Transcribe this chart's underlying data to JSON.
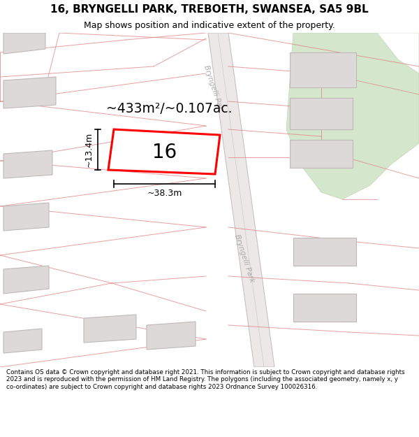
{
  "title_line1": "16, BRYNGELLI PARK, TREBOETH, SWANSEA, SA5 9BL",
  "title_line2": "Map shows position and indicative extent of the property.",
  "footer_text": "Contains OS data © Crown copyright and database right 2021. This information is subject to Crown copyright and database rights 2023 and is reproduced with the permission of HM Land Registry. The polygons (including the associated geometry, namely x, y co-ordinates) are subject to Crown copyright and database rights 2023 Ordnance Survey 100026316.",
  "map_bg": "#faf8f8",
  "building_fill": "#ddd9d9",
  "building_edge": "#c0b8b8",
  "boundary_color": "#e08080",
  "highlight_color": "#ff0000",
  "green_fill": "#d4e6cc",
  "green_edge": "#c0d8b0",
  "road_fill": "#ede8e8",
  "road_edge": "#c8c0c0",
  "area_text": "~433m²/~0.107ac.",
  "number_text": "16",
  "dim_height": "~13.4m",
  "dim_width": "~38.3m",
  "road_label_1": "Bryngelli Par",
  "road_label_2": "Bryngelli Park",
  "title_fontsize": 11,
  "subtitle_fontsize": 9,
  "footer_fontsize": 6.3
}
